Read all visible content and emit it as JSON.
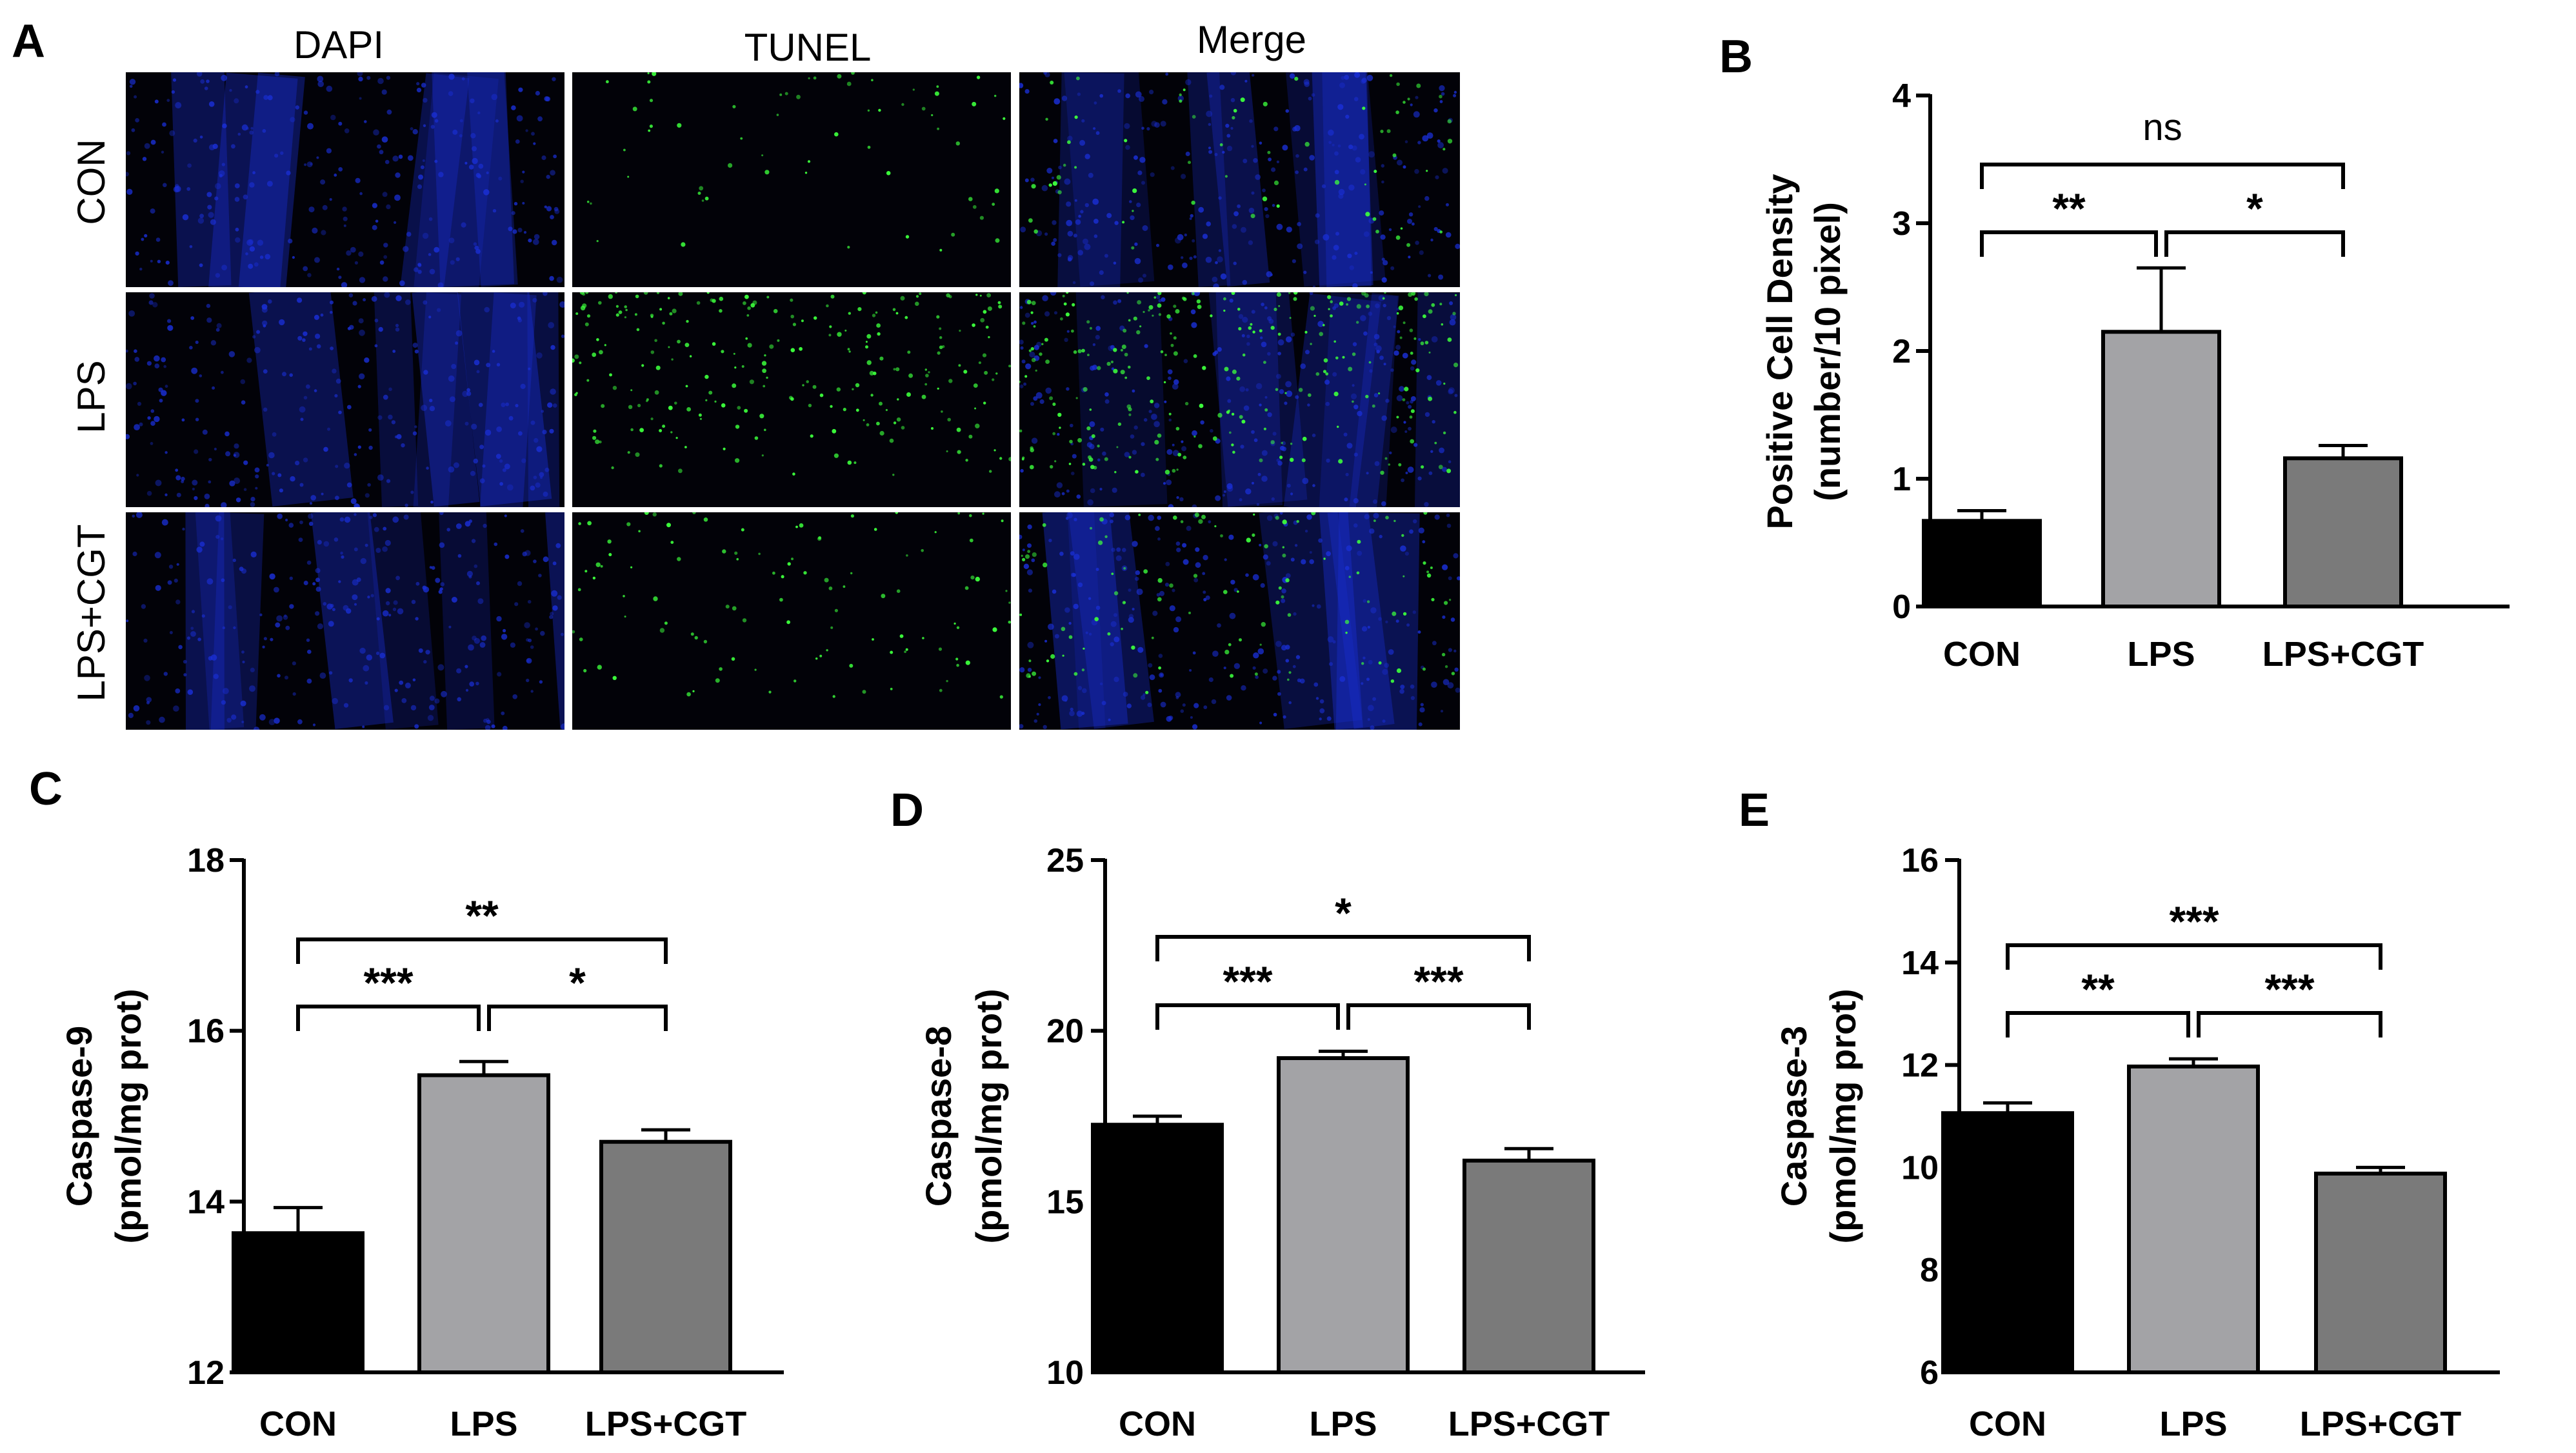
{
  "panel_a": {
    "letter": "A",
    "columns": [
      "DAPI",
      "TUNEL",
      "Merge"
    ],
    "rows": [
      "CON",
      "LPS",
      "LPS+CGT"
    ],
    "colors": {
      "dapi": "#1a2fd6",
      "tunel": "#3cff3c",
      "background": "#020208"
    },
    "tunel_density": [
      [
        0.15,
        0.15,
        0.15
      ],
      [
        1.0,
        1.0,
        1.0
      ],
      [
        0.35,
        0.35,
        0.35
      ]
    ]
  },
  "chart_data": [
    {
      "id": "B",
      "type": "bar",
      "letter": "B",
      "categories": [
        "CON",
        "LPS",
        "LPS+CGT"
      ],
      "values": [
        0.67,
        2.15,
        1.16
      ],
      "errors": [
        0.08,
        0.5,
        0.1
      ],
      "colors": [
        "#000000",
        "#a3a3a6",
        "#7a7a7a"
      ],
      "ylabel_line1": "Positive Cell Density",
      "ylabel_line2": "(number/10 pixel)",
      "ylim": [
        0,
        4
      ],
      "yticks": [
        0,
        1,
        2,
        3,
        4
      ],
      "significance": [
        {
          "from": 0,
          "to": 2,
          "label": "ns",
          "level": 2
        },
        {
          "from": 0,
          "to": 1,
          "label": "**",
          "level": 1
        },
        {
          "from": 1,
          "to": 2,
          "label": "*",
          "level": 1
        }
      ]
    },
    {
      "id": "C",
      "type": "bar",
      "letter": "C",
      "categories": [
        "CON",
        "LPS",
        "LPS+CGT"
      ],
      "values": [
        13.63,
        15.48,
        14.7
      ],
      "errors": [
        0.3,
        0.16,
        0.14
      ],
      "colors": [
        "#000000",
        "#a3a3a6",
        "#7a7a7a"
      ],
      "ylabel_line1": "Caspase-9",
      "ylabel_line2": "(pmol/mg prot)",
      "ylim": [
        12,
        18
      ],
      "yticks": [
        12,
        14,
        16,
        18
      ],
      "significance": [
        {
          "from": 0,
          "to": 2,
          "label": "**",
          "level": 2
        },
        {
          "from": 0,
          "to": 1,
          "label": "***",
          "level": 1
        },
        {
          "from": 1,
          "to": 2,
          "label": "*",
          "level": 1
        }
      ]
    },
    {
      "id": "D",
      "type": "bar",
      "letter": "D",
      "categories": [
        "CON",
        "LPS",
        "LPS+CGT"
      ],
      "values": [
        17.25,
        19.2,
        16.2
      ],
      "errors": [
        0.25,
        0.2,
        0.35
      ],
      "colors": [
        "#000000",
        "#a3a3a6",
        "#7a7a7a"
      ],
      "ylabel_line1": "Caspase-8",
      "ylabel_line2": "(pmol/mg prot)",
      "ylim": [
        10,
        25
      ],
      "yticks": [
        10,
        15,
        20,
        25
      ],
      "significance": [
        {
          "from": 0,
          "to": 2,
          "label": "*",
          "level": 2
        },
        {
          "from": 0,
          "to": 1,
          "label": "***",
          "level": 1
        },
        {
          "from": 1,
          "to": 2,
          "label": "***",
          "level": 1
        }
      ]
    },
    {
      "id": "E",
      "type": "bar",
      "letter": "E",
      "categories": [
        "CON",
        "LPS",
        "LPS+CGT"
      ],
      "values": [
        11.06,
        11.97,
        9.88
      ],
      "errors": [
        0.2,
        0.15,
        0.12
      ],
      "colors": [
        "#000000",
        "#a3a3a6",
        "#7a7a7a"
      ],
      "ylabel_line1": "Caspase-3",
      "ylabel_line2": "(pmol/mg prot)",
      "ylim": [
        6,
        16
      ],
      "yticks": [
        6,
        8,
        10,
        12,
        14,
        16
      ],
      "significance": [
        {
          "from": 0,
          "to": 2,
          "label": "***",
          "level": 2
        },
        {
          "from": 0,
          "to": 1,
          "label": "**",
          "level": 1
        },
        {
          "from": 1,
          "to": 2,
          "label": "***",
          "level": 1
        }
      ]
    }
  ]
}
